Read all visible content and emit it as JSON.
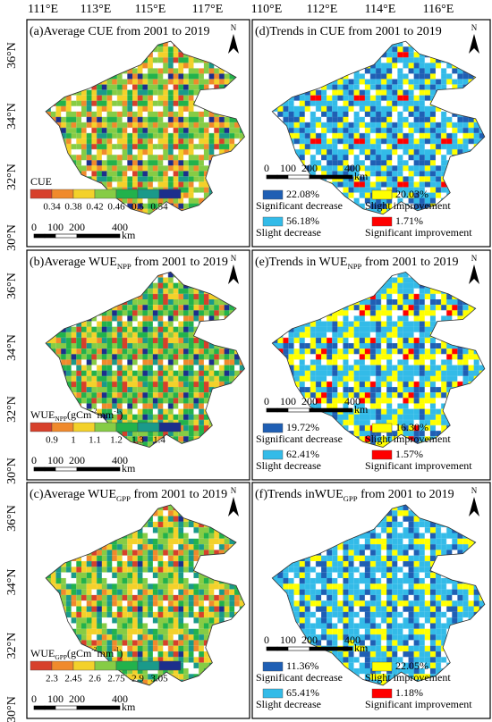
{
  "longitude_labels": {
    "left": [
      "111°E",
      "113°E",
      "115°E",
      "117°E"
    ],
    "right": [
      "110°E",
      "112°E",
      "114°E",
      "116°E"
    ]
  },
  "latitude_labels": [
    "36°N",
    "34°N",
    "32°N",
    "30°N"
  ],
  "north_label": "N",
  "scale_bar": {
    "labels": [
      "0",
      "100",
      "200",
      "400"
    ],
    "unit": "km"
  },
  "panels": [
    {
      "title": [
        {
          "text": "(a)Average CUE from 2001 to 2019"
        }
      ],
      "legend": {
        "title": [
          {
            "text": "CUE"
          }
        ],
        "ticks": [
          0.34,
          0.38,
          0.42,
          0.46,
          0.5,
          0.54
        ],
        "colors": [
          "#d7402b",
          "#f08a2c",
          "#f3d12a",
          "#86cc45",
          "#22b24c",
          "#1a9a8a",
          "#1c2f8c"
        ]
      }
    },
    {
      "title": [
        {
          "text": "(d)Trends in CUE from 2001 to 2019"
        }
      ],
      "legend": {
        "entries": [
          {
            "percent": "22.08%",
            "label": "Significant decrease",
            "color": "#1f5fb4"
          },
          {
            "percent": "20.03%",
            "label": "Slight improvement",
            "color": "#ffff00"
          },
          {
            "percent": "56.18%",
            "label": "Slight decrease",
            "color": "#33bbe8"
          },
          {
            "percent": "1.71%",
            "label": "Significant improvement",
            "color": "#ff0000"
          }
        ]
      }
    },
    {
      "title": [
        {
          "text": "(b)Average WUE"
        },
        {
          "text": "NPP",
          "shift": "sub"
        },
        {
          "text": " from 2001 to 2019"
        }
      ],
      "legend": {
        "title": [
          {
            "text": "WUE"
          },
          {
            "text": "NPP",
            "shift": "sub"
          },
          {
            "text": "(gCm"
          },
          {
            "text": "-2",
            "shift": "super"
          },
          {
            "text": "mm"
          },
          {
            "text": "-1",
            "shift": "super"
          },
          {
            "text": ")"
          }
        ],
        "ticks": [
          0.9,
          1,
          1.1,
          1.2,
          1.3,
          1.4
        ],
        "colors": [
          "#d7402b",
          "#f08a2c",
          "#f3d12a",
          "#86cc45",
          "#22b24c",
          "#1a9a8a",
          "#1c2f8c"
        ]
      }
    },
    {
      "title": [
        {
          "text": "(e)Trends in WUE"
        },
        {
          "text": "NPP",
          "shift": "sub"
        },
        {
          "text": " from 2001 to 2019"
        }
      ],
      "legend": {
        "entries": [
          {
            "percent": "19.72%",
            "label": "Significant decrease",
            "color": "#1f5fb4"
          },
          {
            "percent": "16.30%",
            "label": "Slight improvement",
            "color": "#ffff00"
          },
          {
            "percent": "62.41%",
            "label": "Slight decrease",
            "color": "#33bbe8"
          },
          {
            "percent": "1.57%",
            "label": "Significant improvement",
            "color": "#ff0000"
          }
        ]
      }
    },
    {
      "title": [
        {
          "text": "(c)Average WUE"
        },
        {
          "text": "GPP",
          "shift": "sub"
        },
        {
          "text": " from 2001 to 2019"
        }
      ],
      "legend": {
        "title": [
          {
            "text": "WUE"
          },
          {
            "text": "GPP",
            "shift": "sub"
          },
          {
            "text": "(gCm"
          },
          {
            "text": "-2",
            "shift": "super"
          },
          {
            "text": "mm"
          },
          {
            "text": "-1",
            "shift": "super"
          },
          {
            "text": ")"
          }
        ],
        "ticks": [
          2.3,
          2.45,
          2.6,
          2.75,
          2.9,
          3.05
        ],
        "colors": [
          "#d7402b",
          "#f08a2c",
          "#f3d12a",
          "#86cc45",
          "#22b24c",
          "#1a9a8a",
          "#1c2f8c"
        ]
      }
    },
    {
      "title": [
        {
          "text": "(f)Trends inWUE"
        },
        {
          "text": "GPP",
          "shift": "sub"
        },
        {
          "text": " from 2001 to 2019"
        }
      ],
      "legend": {
        "entries": [
          {
            "percent": "11.36%",
            "label": "Significant decrease",
            "color": "#1f5fb4"
          },
          {
            "percent": "22.05%",
            "label": "Slight improvement",
            "color": "#ffff00"
          },
          {
            "percent": "65.41%",
            "label": "Slight decrease",
            "color": "#33bbe8"
          },
          {
            "percent": "1.18%",
            "label": "Significant improvement",
            "color": "#ff0000"
          }
        ]
      }
    }
  ]
}
